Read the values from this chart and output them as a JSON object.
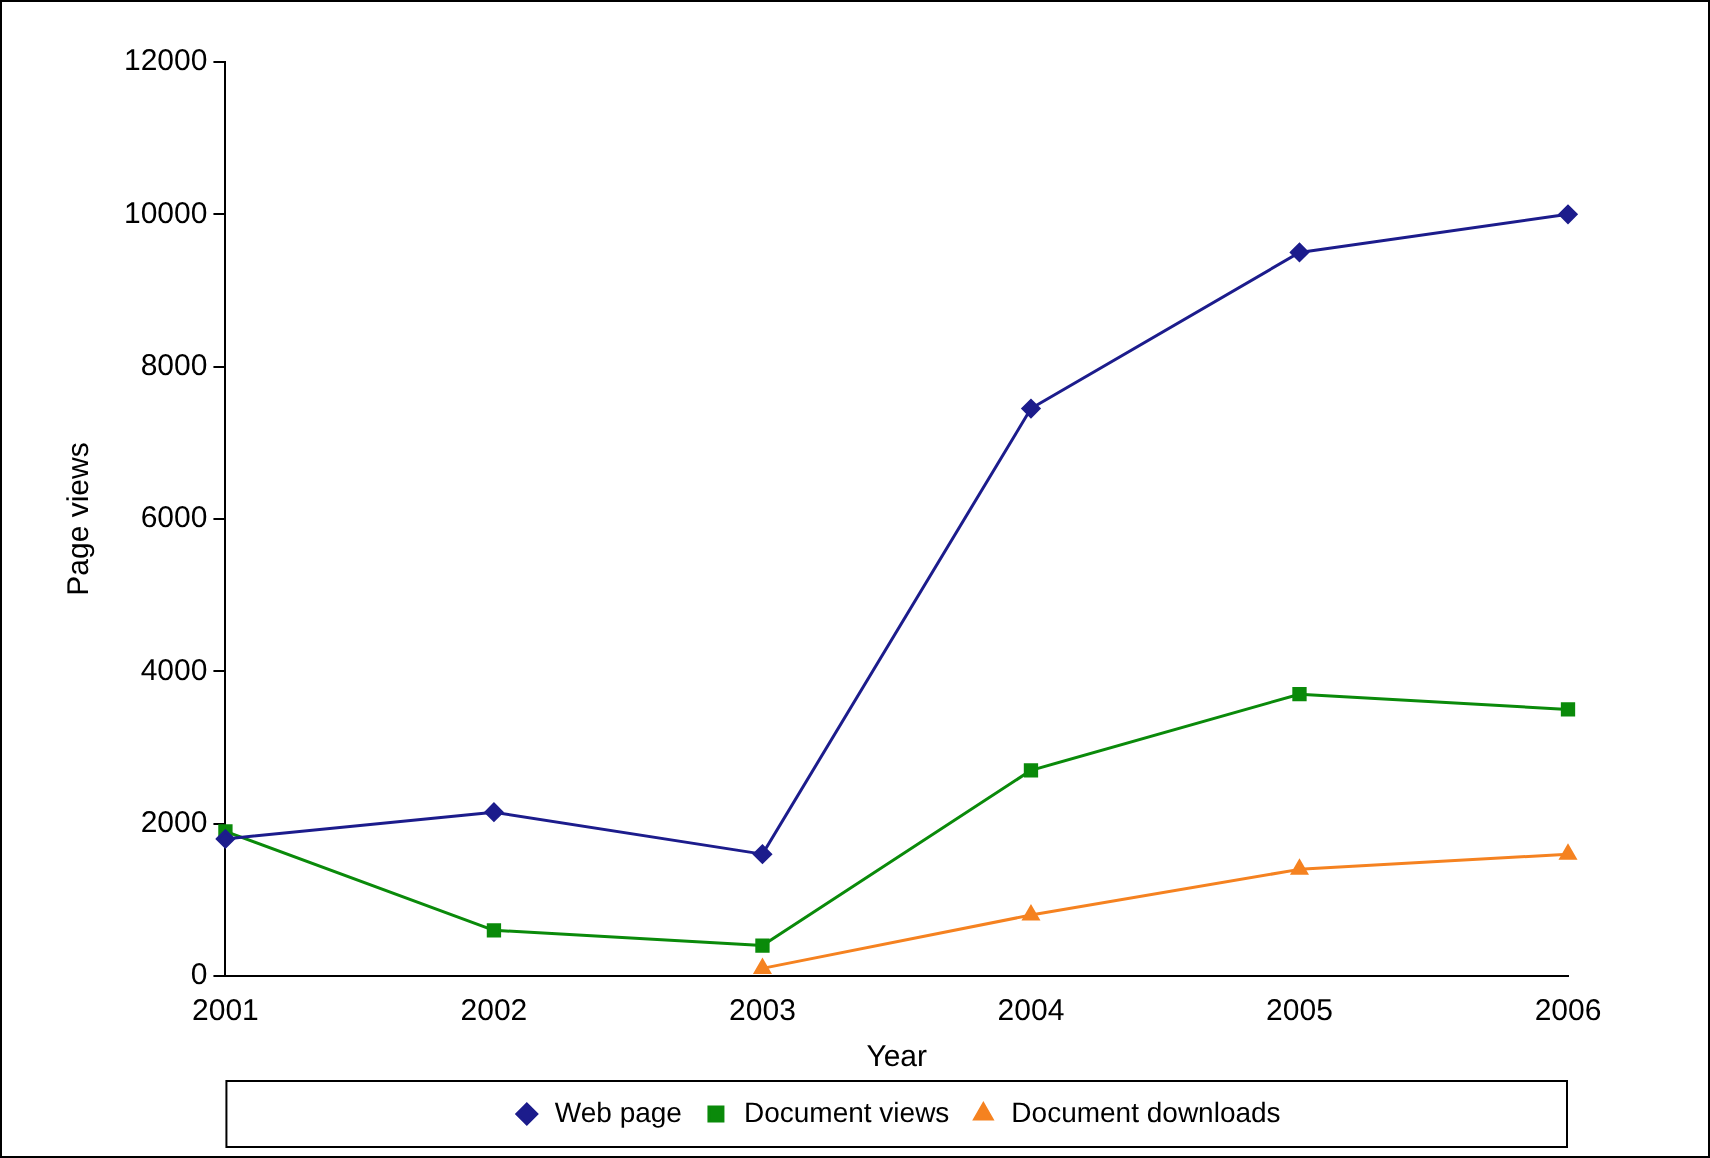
{
  "chart_data": {
    "type": "line",
    "xlabel": "Year",
    "ylabel": "Page views",
    "categories": [
      "2001",
      "2002",
      "2003",
      "2004",
      "2005",
      "2006"
    ],
    "series": [
      {
        "name": "Web page",
        "color": "#1c1c8c",
        "marker": "diamond",
        "values": [
          1800,
          2150,
          1600,
          7450,
          9500,
          10000
        ]
      },
      {
        "name": "Document views",
        "color": "#0a8a0a",
        "marker": "square",
        "values": [
          1900,
          600,
          400,
          2700,
          3700,
          3500
        ]
      },
      {
        "name": "Document downloads",
        "color": "#f58220",
        "marker": "triangle",
        "values": [
          null,
          null,
          100,
          800,
          1400,
          1600
        ]
      }
    ],
    "ylim": [
      0,
      12000
    ],
    "yticks": [
      0,
      2000,
      4000,
      6000,
      8000,
      10000,
      12000
    ],
    "legend": "bottom"
  }
}
